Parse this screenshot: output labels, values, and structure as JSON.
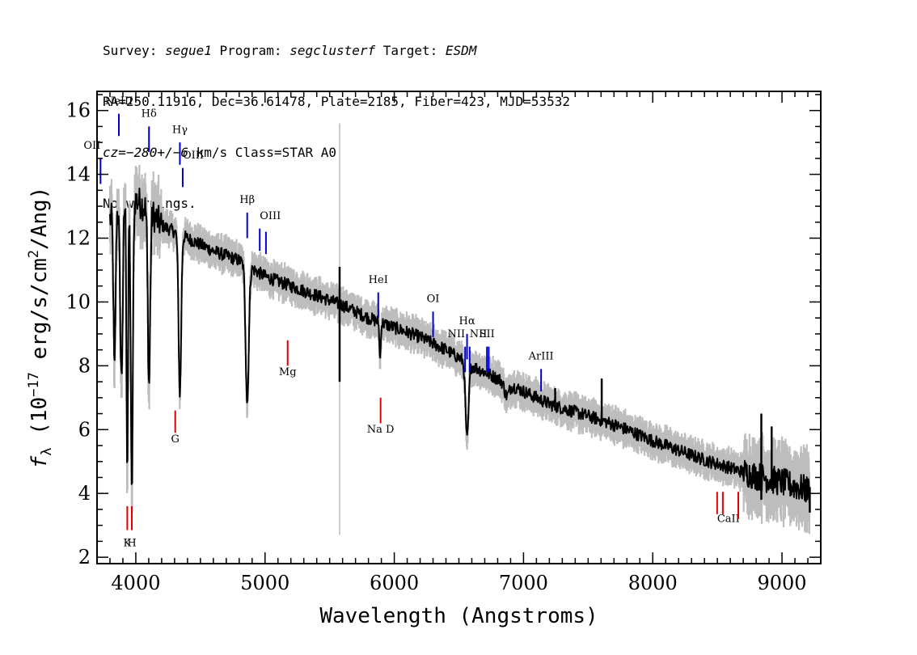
{
  "header": {
    "line1": {
      "survey_label": "Survey: ",
      "survey": "segue1",
      "program_label": " Program: ",
      "program": "segclusterf",
      "target_label": " Target: ",
      "target": "ESDM"
    },
    "line2": "RA=250.11916, Dec=36.61478, Plate=2185, Fiber=423, MJD=53532",
    "line3": {
      "cz": "cz=−280+/−6",
      "rest": " km/s Class=STAR A0"
    },
    "line4": "No warnings."
  },
  "chart_data": {
    "type": "line",
    "xlabel": "Wavelength (Angstroms)",
    "ylabel_parts": {
      "f": "f",
      "sub": "λ",
      "pre": " (10",
      "exp": "−17",
      "mid": " erg/s/cm",
      "exp2": "2",
      "post": "/Ang)"
    },
    "xlim": [
      3700,
      9300
    ],
    "ylim": [
      1.8,
      16.6
    ],
    "xticks": [
      4000,
      5000,
      6000,
      7000,
      8000,
      9000
    ],
    "yticks": [
      2,
      4,
      6,
      8,
      10,
      12,
      14,
      16
    ],
    "colors": {
      "flux": "#000000",
      "error": "#bdbdbd",
      "emission": "#0000cc",
      "absorption": "#dd0000"
    },
    "continuum": [
      [
        3800,
        12.6
      ],
      [
        3900,
        13.2
      ],
      [
        4000,
        13.2
      ],
      [
        4100,
        12.9
      ],
      [
        4200,
        12.4
      ],
      [
        4400,
        12.0
      ],
      [
        4600,
        11.6
      ],
      [
        4800,
        11.3
      ],
      [
        5000,
        10.8
      ],
      [
        5200,
        10.5
      ],
      [
        5400,
        10.2
      ],
      [
        5600,
        9.9
      ],
      [
        5800,
        9.5
      ],
      [
        6000,
        9.2
      ],
      [
        6200,
        8.9
      ],
      [
        6400,
        8.5
      ],
      [
        6600,
        8.0
      ],
      [
        6800,
        7.6
      ],
      [
        7000,
        7.2
      ],
      [
        7200,
        6.8
      ],
      [
        7400,
        6.55
      ],
      [
        7600,
        6.3
      ],
      [
        7800,
        6.0
      ],
      [
        8000,
        5.65
      ],
      [
        8200,
        5.35
      ],
      [
        8400,
        5.05
      ],
      [
        8600,
        4.8
      ],
      [
        8800,
        4.55
      ],
      [
        9000,
        4.35
      ],
      [
        9200,
        4.1
      ]
    ],
    "absorption_features": [
      {
        "x": 3835,
        "depth": 5.0,
        "w": 8
      },
      {
        "x": 3889,
        "depth": 5.5,
        "w": 10
      },
      {
        "x": 3934,
        "depth": 8.5,
        "w": 6
      },
      {
        "x": 3969,
        "depth": 9.3,
        "w": 8
      },
      {
        "x": 4102,
        "depth": 5.5,
        "w": 9
      },
      {
        "x": 4341,
        "depth": 5.0,
        "w": 10
      },
      {
        "x": 4862,
        "depth": 4.3,
        "w": 12
      },
      {
        "x": 5890,
        "depth": 1.2,
        "w": 5
      },
      {
        "x": 6563,
        "depth": 2.4,
        "w": 12
      },
      {
        "x": 6870,
        "depth": 0.4,
        "w": 18
      }
    ],
    "spikes": [
      {
        "x": 5577,
        "top": 11.1,
        "bottom": 7.5
      },
      {
        "x": 7245,
        "top": 7.3,
        "bottom": 6.6
      },
      {
        "x": 7605,
        "top": 7.6,
        "bottom": 6.2
      },
      {
        "x": 8840,
        "top": 6.5,
        "bottom": 3.8
      },
      {
        "x": 8920,
        "top": 6.1,
        "bottom": 4.2
      },
      {
        "x": 9215,
        "top": 4.2,
        "bottom": 3.4
      }
    ],
    "emission_lines": [
      {
        "label": "OII",
        "x": 3727,
        "y_top": 14.5,
        "y_bot": 13.7,
        "label_y": 14.8,
        "anchor": "end"
      },
      {
        "label": "NeIII",
        "x": 3869,
        "y_top": 15.9,
        "y_bot": 15.2,
        "label_y": 16.2,
        "anchor": "middle"
      },
      {
        "label": "Hδ",
        "x": 4102,
        "y_top": 15.5,
        "y_bot": 14.7,
        "label_y": 15.8,
        "anchor": "middle"
      },
      {
        "label": "Hγ",
        "x": 4341,
        "y_top": 15.0,
        "y_bot": 14.3,
        "label_y": 15.3,
        "anchor": "middle"
      },
      {
        "label": "OIII",
        "x": 4363,
        "y_top": 14.2,
        "y_bot": 13.6,
        "label_y": 14.5,
        "anchor": "start"
      },
      {
        "label": "Hβ",
        "x": 4862,
        "y_top": 12.8,
        "y_bot": 12.0,
        "label_y": 13.1,
        "anchor": "middle"
      },
      {
        "label": "OIII",
        "x": 4959,
        "y_top": 12.3,
        "y_bot": 11.6,
        "label_y": 12.6,
        "anchor": "start"
      },
      {
        "label": "",
        "x": 5007,
        "y_top": 12.2,
        "y_bot": 11.5,
        "label_y": 0,
        "anchor": "middle"
      },
      {
        "label": "HeI",
        "x": 5876,
        "y_top": 10.3,
        "y_bot": 9.5,
        "label_y": 10.6,
        "anchor": "middle"
      },
      {
        "label": "OI",
        "x": 6300,
        "y_top": 9.7,
        "y_bot": 8.9,
        "label_y": 10.0,
        "anchor": "middle"
      },
      {
        "label": "NII",
        "x": 6548,
        "y_top": 8.6,
        "y_bot": 7.8,
        "label_y": 8.9,
        "anchor": "end"
      },
      {
        "label": "Hα",
        "x": 6563,
        "y_top": 9.0,
        "y_bot": 8.2,
        "label_y": 9.3,
        "anchor": "middle"
      },
      {
        "label": "NII",
        "x": 6583,
        "y_top": 8.6,
        "y_bot": 7.8,
        "label_y": 8.9,
        "anchor": "start"
      },
      {
        "label": "SII",
        "x": 6717,
        "y_top": 8.6,
        "y_bot": 7.8,
        "label_y": 8.9,
        "anchor": "middle"
      },
      {
        "label": "",
        "x": 6731,
        "y_top": 8.6,
        "y_bot": 7.8,
        "label_y": 0,
        "anchor": "middle"
      },
      {
        "label": "ArIII",
        "x": 7136,
        "y_top": 7.9,
        "y_bot": 7.2,
        "label_y": 8.2,
        "anchor": "middle"
      }
    ],
    "absorption_lines": [
      {
        "label": "K",
        "x": 3934,
        "y_top": 3.6,
        "y_bot": 2.85,
        "label_y": 2.35,
        "anchor": "middle"
      },
      {
        "label": "H",
        "x": 3969,
        "y_top": 3.6,
        "y_bot": 2.85,
        "label_y": 2.35,
        "anchor": "middle"
      },
      {
        "label": "G",
        "x": 4305,
        "y_top": 6.6,
        "y_bot": 5.9,
        "label_y": 5.6,
        "anchor": "middle"
      },
      {
        "label": "Mg",
        "x": 5175,
        "y_top": 8.8,
        "y_bot": 8.0,
        "label_y": 7.7,
        "anchor": "middle"
      },
      {
        "label": "Na D",
        "x": 5894,
        "y_top": 7.0,
        "y_bot": 6.2,
        "label_y": 5.9,
        "anchor": "middle"
      },
      {
        "label": "CaII",
        "x": 8498,
        "y_top": 4.05,
        "y_bot": 3.35,
        "label_y": 3.1,
        "anchor": "start"
      },
      {
        "label": "",
        "x": 8542,
        "y_top": 4.05,
        "y_bot": 3.35,
        "label_y": 0,
        "anchor": "middle"
      },
      {
        "label": "",
        "x": 8662,
        "y_top": 4.05,
        "y_bot": 3.2,
        "label_y": 0,
        "anchor": "middle"
      }
    ]
  }
}
